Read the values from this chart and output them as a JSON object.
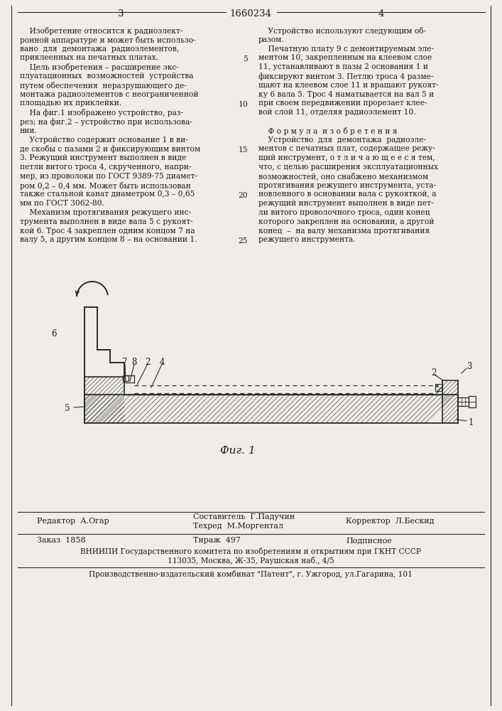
{
  "page_number_left": "3",
  "page_title": "1660234",
  "page_number_right": "4",
  "col_left_text": [
    "    Изобретение относится к радиоэлект-",
    "ронной аппаратуре и может быть использо-",
    "вано  для  демонтажа  радиоэлементов,",
    "приклеенных на печатных платах.",
    "    Цель изобретения – расширение экс-",
    "плуатационных  возможностей  устройства",
    "путем обеспечения  неразрушающего де-",
    "монтажа радиоэлементов с неограниченной",
    "площадью их приклейки.",
    "    На фиг.1 изображено устройство, раз-",
    "рез; на фиг.2 – устройство при использова-",
    "нии.",
    "    Устройство содержит основание 1 в ви-",
    "де скобы с пазами 2 и фиксирующим винтом",
    "3. Режущий инструмент выполнен в виде",
    "петли витого троса 4, скрученного, напри-",
    "мер, из проволоки по ГОСТ 9389-75 диамет-",
    "ром 0,2 – 0,4 мм. Может быть использован",
    "также стальной канат диаметром 0,3 – 0,65",
    "мм по ГОСТ 3062-80.",
    "    Механизм протягивания режущего инс-",
    "трумента выполнен в виде вала 5 с рукоят-",
    "кой 6. Трос 4 закреплен одним концом 7 на",
    "валу 5, а другим концом 8 – на основании 1."
  ],
  "col_right_text": [
    "    Устройство используют следующим об-",
    "разом.",
    "    Печатную плату 9 с демонтируемым эле-",
    "ментом 10, закрепленным на клеевом слое",
    "11, устанавливают в пазы 2 основания 1 и",
    "фиксируют винтом 3. Петлю троса 4 разме-",
    "щают на клеевом слое 11 и вращают рукоят-",
    "ку 6 вала 5. Трос 4 наматывается на вал 5 и",
    "при своем передвижении прорезает клее-",
    "вой слой 11, отделяя радиоэлемент 10.",
    "",
    "    Ф о р м у л а  и з о б р е т е н и я",
    "    Устройство  для  демонтажа  радиоэле-",
    "ментов с печатных плат, содержащее режу-",
    "щий инструмент, о т л и ч а ю щ е е с я тем,",
    "что, с целью расширения эксплуатационных",
    "возможностей, оно снабжено механизмом",
    "протягивания режущего инструмента, уста-",
    "новленного в основании вала с рукояткой, а",
    "режущий инструмент выполнен в виде пет-",
    "ли витого проволочного троса, один конец",
    "которого закреплен на основании, а другой",
    "конец  –  на валу механизма протягивания",
    "режущего инструмента."
  ],
  "line_numbers": [
    "5",
    "10",
    "15",
    "20",
    "25"
  ],
  "fig_caption": "Фиг. 1",
  "editor_line": "Редактор  А.Огар",
  "composer_line": "Составитель  Г.Падучин",
  "techred_line": "Техред  М.Моргентал",
  "corrector_line": "Корректор  Л.Бескид",
  "order_line": "Заказ  1858",
  "circulation_line": "Тираж  497",
  "subscription_line": "Подписное",
  "vniip_line": "ВНИИПИ Государственного комитета по изобретениям и открытиям при ГКНТ СССР",
  "address_line": "113035, Москва, Ж-35, Раушская наб., 4/5",
  "publisher_line": "Производственно-издательский комбинат \"Патент\", г. Ужгород, ул.Гагарина, 101",
  "bg_color": "#f0ede8",
  "text_color": "#1a1a1a",
  "line_color": "#2a2a2a"
}
